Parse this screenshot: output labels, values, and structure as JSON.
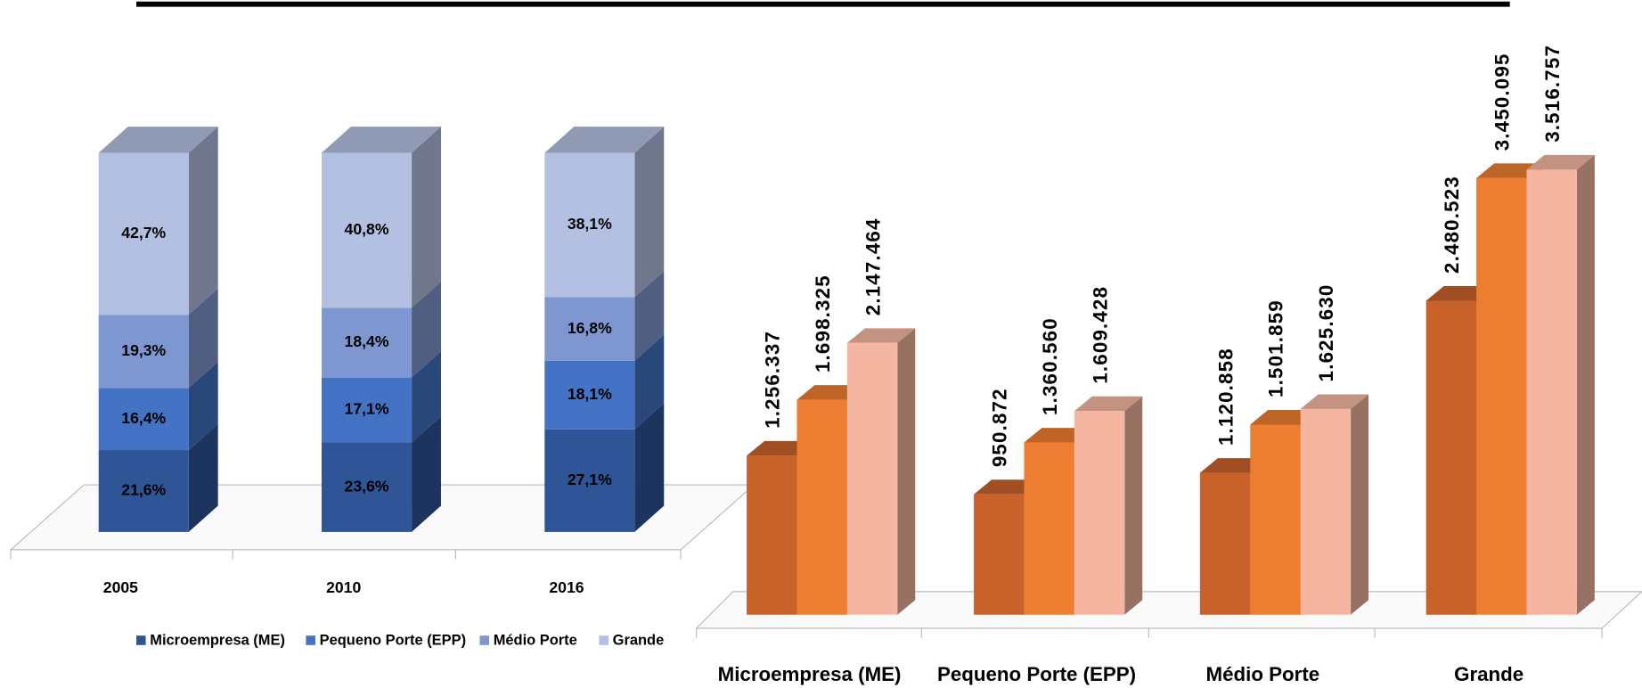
{
  "chart_data": [
    {
      "type": "bar",
      "stacked": true,
      "categories": [
        "2005",
        "2010",
        "2016"
      ],
      "series": [
        {
          "name": "Microempresa (ME)",
          "color": "#2f5597",
          "values": [
            21.6,
            23.6,
            27.1
          ],
          "value_labels": [
            "21,6%",
            "23,6%",
            "27,1%"
          ]
        },
        {
          "name": "Pequeno Porte (EPP)",
          "color": "#4472c4",
          "values": [
            16.4,
            17.1,
            18.1
          ],
          "value_labels": [
            "16,4%",
            "17,1%",
            "18,1%"
          ]
        },
        {
          "name": "Médio Porte",
          "color": "#7f97d0",
          "values": [
            19.3,
            18.4,
            16.8
          ],
          "value_labels": [
            "19,3%",
            "18,4%",
            "16,8%"
          ]
        },
        {
          "name": "Grande",
          "color": "#b4c0e2",
          "values": [
            42.7,
            40.8,
            38.1
          ],
          "value_labels": [
            "42,7%",
            "40,8%",
            "38,1%"
          ]
        }
      ]
    },
    {
      "type": "bar",
      "categories": [
        "Microempresa (ME)",
        "Pequeno Porte (EPP)",
        "Médio Porte",
        "Grande"
      ],
      "series": [
        {
          "color": "#c8622a",
          "values": [
            1256337,
            950872,
            1120858,
            2480523
          ],
          "value_labels": [
            "1.256.337",
            "950.872",
            "1.120.858",
            "2.480.523"
          ]
        },
        {
          "color": "#ed7d31",
          "values": [
            1698325,
            1360560,
            1501859,
            3450095
          ],
          "value_labels": [
            "1.698.325",
            "1.360.560",
            "1.501.859",
            "3.450.095"
          ]
        },
        {
          "color": "#f4b6a0",
          "values": [
            2147464,
            1609428,
            1625630,
            3516757
          ],
          "value_labels": [
            "2.147.464",
            "1.609.428",
            "1.625.630",
            "3.516.757"
          ]
        }
      ]
    }
  ]
}
